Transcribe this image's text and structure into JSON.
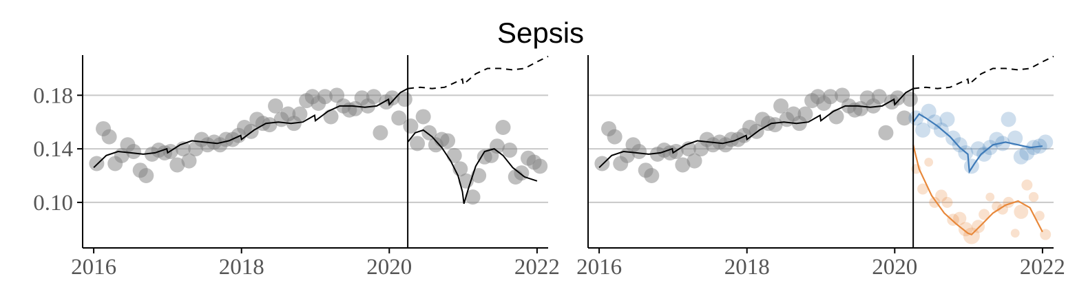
{
  "chart_data": {
    "title": "Sepsis",
    "panels": [
      {
        "type": "scatter",
        "xlim": [
          2015.85,
          2022.15
        ],
        "ylim": [
          0.066,
          0.21
        ],
        "x_ticks": [
          2016,
          2018,
          2020,
          2022
        ],
        "y_ticks": [
          0.1,
          0.14,
          0.18
        ],
        "y_tick_labels": [
          "0.10",
          "0.14",
          "0.18"
        ],
        "grid": "horizontal",
        "vline_x": 2020.25,
        "point_color": "#808080",
        "observed": [
          {
            "x": 2016.04,
            "y": 0.129
          },
          {
            "x": 2016.13,
            "y": 0.155
          },
          {
            "x": 2016.21,
            "y": 0.149
          },
          {
            "x": 2016.29,
            "y": 0.129
          },
          {
            "x": 2016.38,
            "y": 0.135
          },
          {
            "x": 2016.46,
            "y": 0.143
          },
          {
            "x": 2016.54,
            "y": 0.138
          },
          {
            "x": 2016.63,
            "y": 0.124
          },
          {
            "x": 2016.71,
            "y": 0.12
          },
          {
            "x": 2016.79,
            "y": 0.136
          },
          {
            "x": 2016.88,
            "y": 0.139
          },
          {
            "x": 2016.96,
            "y": 0.137
          },
          {
            "x": 2017.04,
            "y": 0.138
          },
          {
            "x": 2017.13,
            "y": 0.128
          },
          {
            "x": 2017.21,
            "y": 0.14
          },
          {
            "x": 2017.29,
            "y": 0.131
          },
          {
            "x": 2017.38,
            "y": 0.14
          },
          {
            "x": 2017.46,
            "y": 0.147
          },
          {
            "x": 2017.54,
            "y": 0.143
          },
          {
            "x": 2017.63,
            "y": 0.145
          },
          {
            "x": 2017.71,
            "y": 0.143
          },
          {
            "x": 2017.79,
            "y": 0.147
          },
          {
            "x": 2017.88,
            "y": 0.147
          },
          {
            "x": 2017.96,
            "y": 0.15
          },
          {
            "x": 2018.04,
            "y": 0.156
          },
          {
            "x": 2018.13,
            "y": 0.153
          },
          {
            "x": 2018.21,
            "y": 0.162
          },
          {
            "x": 2018.29,
            "y": 0.159
          },
          {
            "x": 2018.38,
            "y": 0.158
          },
          {
            "x": 2018.46,
            "y": 0.172
          },
          {
            "x": 2018.54,
            "y": 0.162
          },
          {
            "x": 2018.63,
            "y": 0.166
          },
          {
            "x": 2018.71,
            "y": 0.159
          },
          {
            "x": 2018.79,
            "y": 0.166
          },
          {
            "x": 2018.88,
            "y": 0.176
          },
          {
            "x": 2018.96,
            "y": 0.179
          },
          {
            "x": 2019.04,
            "y": 0.174
          },
          {
            "x": 2019.13,
            "y": 0.179
          },
          {
            "x": 2019.21,
            "y": 0.164
          },
          {
            "x": 2019.29,
            "y": 0.18
          },
          {
            "x": 2019.38,
            "y": 0.172
          },
          {
            "x": 2019.46,
            "y": 0.169
          },
          {
            "x": 2019.54,
            "y": 0.17
          },
          {
            "x": 2019.63,
            "y": 0.178
          },
          {
            "x": 2019.71,
            "y": 0.172
          },
          {
            "x": 2019.79,
            "y": 0.179
          },
          {
            "x": 2019.88,
            "y": 0.152
          },
          {
            "x": 2019.96,
            "y": 0.175
          },
          {
            "x": 2020.04,
            "y": 0.178
          },
          {
            "x": 2020.13,
            "y": 0.163
          },
          {
            "x": 2020.21,
            "y": 0.177
          }
        ],
        "post": [
          {
            "x": 2020.29,
            "y": 0.157
          },
          {
            "x": 2020.38,
            "y": 0.144
          },
          {
            "x": 2020.46,
            "y": 0.164
          },
          {
            "x": 2020.54,
            "y": 0.152
          },
          {
            "x": 2020.63,
            "y": 0.143
          },
          {
            "x": 2020.71,
            "y": 0.147
          },
          {
            "x": 2020.79,
            "y": 0.146
          },
          {
            "x": 2020.88,
            "y": 0.135
          },
          {
            "x": 2020.96,
            "y": 0.125
          },
          {
            "x": 2021.04,
            "y": 0.116
          },
          {
            "x": 2021.13,
            "y": 0.104
          },
          {
            "x": 2021.21,
            "y": 0.12
          },
          {
            "x": 2021.29,
            "y": 0.134
          },
          {
            "x": 2021.38,
            "y": 0.135
          },
          {
            "x": 2021.46,
            "y": 0.142
          },
          {
            "x": 2021.54,
            "y": 0.156
          },
          {
            "x": 2021.63,
            "y": 0.139
          },
          {
            "x": 2021.71,
            "y": 0.119
          },
          {
            "x": 2021.79,
            "y": 0.122
          },
          {
            "x": 2021.88,
            "y": 0.133
          },
          {
            "x": 2021.96,
            "y": 0.13
          },
          {
            "x": 2022.04,
            "y": 0.127
          }
        ],
        "fit": [
          [
            2016.0,
            0.126
          ],
          [
            2016.17,
            0.135
          ],
          [
            2016.33,
            0.138
          ],
          [
            2016.5,
            0.137
          ],
          [
            2016.67,
            0.136
          ],
          [
            2016.83,
            0.137
          ],
          [
            2016.99,
            0.14
          ],
          [
            2017.0,
            0.137
          ],
          [
            2017.17,
            0.143
          ],
          [
            2017.33,
            0.146
          ],
          [
            2017.5,
            0.145
          ],
          [
            2017.67,
            0.144
          ],
          [
            2017.83,
            0.146
          ],
          [
            2017.99,
            0.15
          ],
          [
            2018.0,
            0.147
          ],
          [
            2018.17,
            0.154
          ],
          [
            2018.33,
            0.159
          ],
          [
            2018.5,
            0.16
          ],
          [
            2018.67,
            0.159
          ],
          [
            2018.83,
            0.16
          ],
          [
            2018.99,
            0.165
          ],
          [
            2019.0,
            0.161
          ],
          [
            2019.17,
            0.168
          ],
          [
            2019.33,
            0.172
          ],
          [
            2019.5,
            0.172
          ],
          [
            2019.67,
            0.171
          ],
          [
            2019.83,
            0.172
          ],
          [
            2019.99,
            0.177
          ],
          [
            2020.0,
            0.173
          ],
          [
            2020.15,
            0.182
          ],
          [
            2020.25,
            0.185
          ]
        ],
        "counterfactual": [
          [
            2020.25,
            0.185
          ],
          [
            2020.42,
            0.186
          ],
          [
            2020.58,
            0.185
          ],
          [
            2020.75,
            0.186
          ],
          [
            2020.99,
            0.192
          ],
          [
            2021.0,
            0.188
          ],
          [
            2021.17,
            0.196
          ],
          [
            2021.33,
            0.2
          ],
          [
            2021.5,
            0.2
          ],
          [
            2021.67,
            0.199
          ],
          [
            2021.83,
            0.2
          ],
          [
            2022.0,
            0.205
          ],
          [
            2022.15,
            0.209
          ]
        ],
        "post_fit": [
          [
            2020.25,
            0.145
          ],
          [
            2020.35,
            0.152
          ],
          [
            2020.46,
            0.154
          ],
          [
            2020.58,
            0.149
          ],
          [
            2020.71,
            0.141
          ],
          [
            2020.83,
            0.131
          ],
          [
            2020.93,
            0.12
          ],
          [
            2020.99,
            0.108
          ],
          [
            2021.01,
            0.099
          ],
          [
            2021.08,
            0.112
          ],
          [
            2021.17,
            0.127
          ],
          [
            2021.29,
            0.138
          ],
          [
            2021.42,
            0.14
          ],
          [
            2021.54,
            0.135
          ],
          [
            2021.67,
            0.126
          ],
          [
            2021.83,
            0.119
          ],
          [
            2022.0,
            0.116
          ]
        ]
      },
      {
        "type": "scatter",
        "xlim": [
          2015.85,
          2022.15
        ],
        "ylim": [
          0.066,
          0.21
        ],
        "x_ticks": [
          2016,
          2018,
          2020,
          2022
        ],
        "y_ticks": [
          0.1,
          0.14,
          0.18
        ],
        "grid": "horizontal",
        "vline_x": 2020.25,
        "point_color": "#808080",
        "series_colors": {
          "blue": "#3d7ab8",
          "orange": "#e8883a"
        },
        "blue_points": [
          {
            "x": 2020.29,
            "y": 0.163
          },
          {
            "x": 2020.38,
            "y": 0.154
          },
          {
            "x": 2020.46,
            "y": 0.168
          },
          {
            "x": 2020.54,
            "y": 0.16
          },
          {
            "x": 2020.63,
            "y": 0.154
          },
          {
            "x": 2020.71,
            "y": 0.162
          },
          {
            "x": 2020.79,
            "y": 0.148
          },
          {
            "x": 2020.88,
            "y": 0.143
          },
          {
            "x": 2020.96,
            "y": 0.137
          },
          {
            "x": 2021.04,
            "y": 0.127
          },
          {
            "x": 2021.13,
            "y": 0.14
          },
          {
            "x": 2021.21,
            "y": 0.136
          },
          {
            "x": 2021.29,
            "y": 0.141
          },
          {
            "x": 2021.38,
            "y": 0.147
          },
          {
            "x": 2021.46,
            "y": 0.144
          },
          {
            "x": 2021.54,
            "y": 0.162
          },
          {
            "x": 2021.63,
            "y": 0.148
          },
          {
            "x": 2021.71,
            "y": 0.134
          },
          {
            "x": 2021.79,
            "y": 0.137
          },
          {
            "x": 2021.88,
            "y": 0.141
          },
          {
            "x": 2021.96,
            "y": 0.142
          },
          {
            "x": 2022.04,
            "y": 0.145
          }
        ],
        "blue_fit": [
          [
            2020.25,
            0.16
          ],
          [
            2020.33,
            0.166
          ],
          [
            2020.42,
            0.163
          ],
          [
            2020.58,
            0.157
          ],
          [
            2020.75,
            0.149
          ],
          [
            2020.88,
            0.141
          ],
          [
            2020.99,
            0.136
          ],
          [
            2021.01,
            0.123
          ],
          [
            2021.08,
            0.129
          ],
          [
            2021.17,
            0.136
          ],
          [
            2021.33,
            0.143
          ],
          [
            2021.5,
            0.145
          ],
          [
            2021.67,
            0.143
          ],
          [
            2021.83,
            0.141
          ],
          [
            2022.0,
            0.142
          ]
        ],
        "orange_points": [
          {
            "x": 2020.29,
            "y": 0.125,
            "s": 0.4
          },
          {
            "x": 2020.38,
            "y": 0.11,
            "s": 0.5
          },
          {
            "x": 2020.46,
            "y": 0.13,
            "s": 0.3
          },
          {
            "x": 2020.54,
            "y": 0.1,
            "s": 0.5
          },
          {
            "x": 2020.63,
            "y": 0.105,
            "s": 0.6
          },
          {
            "x": 2020.71,
            "y": 0.1,
            "s": 0.5
          },
          {
            "x": 2020.79,
            "y": 0.087,
            "s": 0.6
          },
          {
            "x": 2020.88,
            "y": 0.088,
            "s": 0.7
          },
          {
            "x": 2020.96,
            "y": 0.08,
            "s": 0.8
          },
          {
            "x": 2021.04,
            "y": 0.075,
            "s": 1.0
          },
          {
            "x": 2021.13,
            "y": 0.082,
            "s": 0.7
          },
          {
            "x": 2021.21,
            "y": 0.091,
            "s": 0.5
          },
          {
            "x": 2021.29,
            "y": 0.104,
            "s": 0.3
          },
          {
            "x": 2021.38,
            "y": 0.097,
            "s": 0.4
          },
          {
            "x": 2021.46,
            "y": 0.095,
            "s": 0.5
          },
          {
            "x": 2021.54,
            "y": 0.1,
            "s": 0.5
          },
          {
            "x": 2021.63,
            "y": 0.077,
            "s": 0.3
          },
          {
            "x": 2021.71,
            "y": 0.093,
            "s": 0.8
          },
          {
            "x": 2021.79,
            "y": 0.113,
            "s": 0.5
          },
          {
            "x": 2021.88,
            "y": 0.104,
            "s": 0.4
          },
          {
            "x": 2021.96,
            "y": 0.09,
            "s": 0.4
          },
          {
            "x": 2022.04,
            "y": 0.076,
            "s": 0.5
          }
        ],
        "orange_fit": [
          [
            2020.25,
            0.143
          ],
          [
            2020.33,
            0.125
          ],
          [
            2020.5,
            0.105
          ],
          [
            2020.67,
            0.092
          ],
          [
            2020.83,
            0.084
          ],
          [
            2020.99,
            0.077
          ],
          [
            2021.04,
            0.076
          ],
          [
            2021.17,
            0.083
          ],
          [
            2021.33,
            0.092
          ],
          [
            2021.5,
            0.098
          ],
          [
            2021.67,
            0.101
          ],
          [
            2021.83,
            0.096
          ],
          [
            2022.0,
            0.078
          ]
        ]
      }
    ]
  }
}
